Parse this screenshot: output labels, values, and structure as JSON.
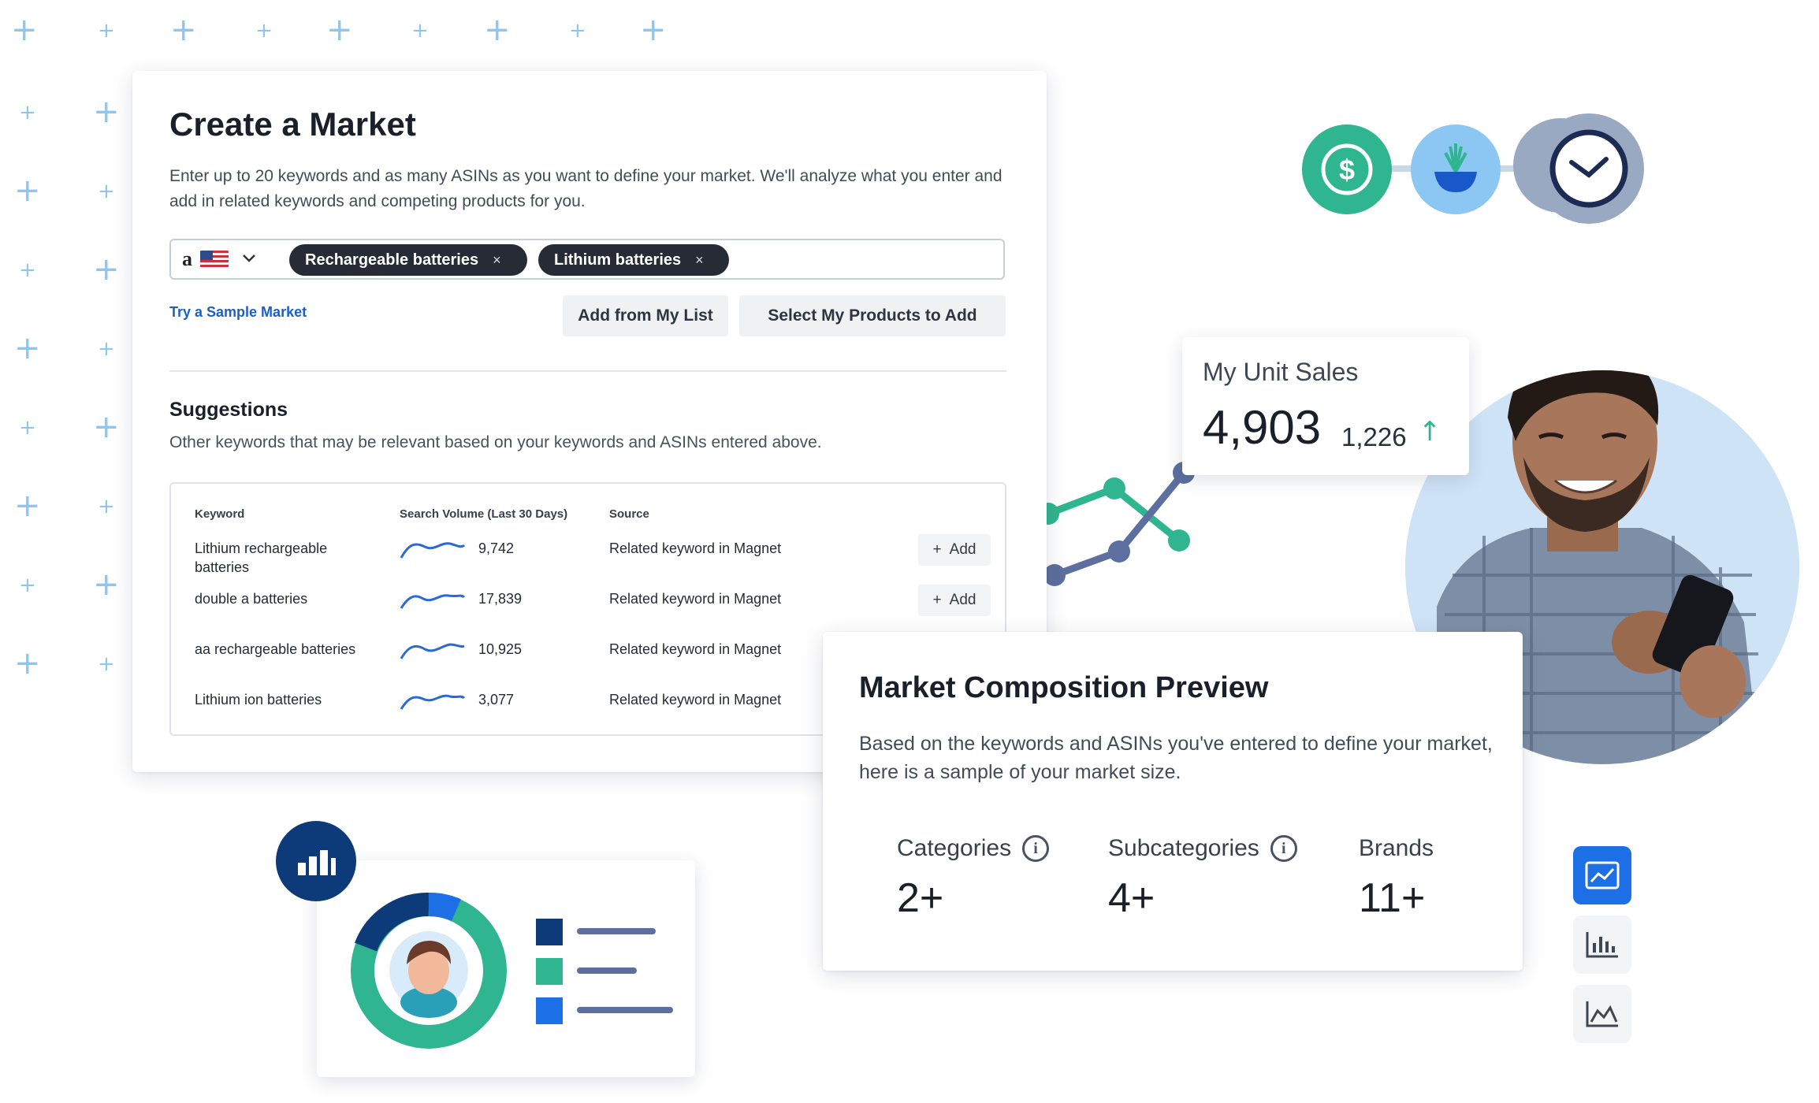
{
  "create_market": {
    "title": "Create a Market",
    "description": "Enter up to 20 keywords and as many ASINs as you want to define your market. We'll analyze what you enter and add in related keywords and competing products for you.",
    "marketplace": {
      "logo": "a",
      "flag": "us-flag-icon"
    },
    "chips": [
      {
        "label": "Rechargeable batteries",
        "remove": "×"
      },
      {
        "label": "Lithium batteries",
        "remove": "×"
      }
    ],
    "sample_link": "Try a Sample Market",
    "buttons": {
      "add_from_list": "Add from My List",
      "select_products": "Select My Products to Add"
    },
    "suggestions": {
      "title": "Suggestions",
      "description": "Other keywords that may be relevant based on your keywords and ASINs entered above.",
      "columns": [
        "Keyword",
        "Search Volume (Last 30 Days)",
        "Source"
      ],
      "rows": [
        {
          "keyword": "Lithium rechargeable batteries",
          "volume": "9,742",
          "source": "Related keyword in Magnet",
          "action": "Add"
        },
        {
          "keyword": "double a batteries",
          "volume": "17,839",
          "source": "Related keyword in Magnet",
          "action": "Add"
        },
        {
          "keyword": "aa rechargeable batteries",
          "volume": "10,925",
          "source": "Related keyword in Magnet",
          "action": ""
        },
        {
          "keyword": "Lithium ion batteries",
          "volume": "3,077",
          "source": "Related keyword in Magnet",
          "action": ""
        }
      ]
    }
  },
  "composition": {
    "title": "Market Composition Preview",
    "description": "Based on the keywords and ASINs you've entered to define your market, here is a sample of your market size.",
    "stats": [
      {
        "label": "Categories",
        "value": "2+",
        "info": "i"
      },
      {
        "label": "Subcategories",
        "value": "4+",
        "info": "i"
      },
      {
        "label": "Brands",
        "value": "11+"
      }
    ]
  },
  "unit_sales": {
    "title": "My Unit Sales",
    "value": "4,903",
    "delta": "1,226",
    "trend": "up"
  },
  "icons": {
    "dollar": "$",
    "plus_glyph": "+",
    "add_glyph": "+",
    "arrow_up": "↑",
    "chevron": "⌄"
  },
  "colors": {
    "accent_blue": "#1d5fc7",
    "chip_dark": "#262b36",
    "teal": "#2fb58f",
    "navy": "#0d3a78",
    "light_blue": "#8cc6f2"
  }
}
